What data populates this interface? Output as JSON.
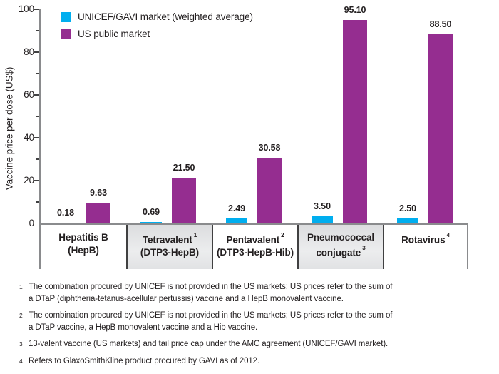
{
  "chart_data": {
    "type": "bar",
    "title": "",
    "xlabel": "",
    "ylabel": "Vaccine price per dose (US$)",
    "ylim": [
      0,
      100
    ],
    "y_major_ticks": [
      0,
      20,
      40,
      60,
      80,
      100
    ],
    "y_minor_tick_step": 10,
    "grid": false,
    "legend_position": "top-left-inside",
    "categories": [
      {
        "line1": "Hepatitis B",
        "line1_sup": "",
        "line2": "(HepB)",
        "line2_sup": ""
      },
      {
        "line1": "Tetravalent",
        "line1_sup": "1",
        "line2": "(DTP3-HepB)",
        "line2_sup": ""
      },
      {
        "line1": "Pentavalent",
        "line1_sup": "2",
        "line2": "(DTP3-HepB-Hib)",
        "line2_sup": ""
      },
      {
        "line1": "Pneumococcal",
        "line1_sup": "",
        "line2": "conjugate",
        "line2_sup": "3"
      },
      {
        "line1": "Rotavirus",
        "line1_sup": "4",
        "line2": "",
        "line2_sup": ""
      }
    ],
    "series": [
      {
        "name": "UNICEF/GAVI market (weighted average)",
        "color": "#00AEEF",
        "values": [
          0.18,
          0.69,
          2.49,
          3.5,
          2.5
        ],
        "labels": [
          "0.18",
          "0.69",
          "2.49",
          "3.50",
          "2.50"
        ]
      },
      {
        "name": "US public market",
        "color": "#952D90",
        "values": [
          9.63,
          21.5,
          30.58,
          95.1,
          88.5
        ],
        "labels": [
          "9.63",
          "21.50",
          "30.58",
          "95.10",
          "88.50"
        ]
      }
    ]
  },
  "footnotes": [
    {
      "marker": "1",
      "lines": [
        "The combination procured by UNICEF is not provided in the US markets; US prices refer to the sum of",
        "a DTaP (diphtheria-tetanus-acellular pertussis) vaccine and a HepB monovalent vaccine."
      ]
    },
    {
      "marker": "2",
      "lines": [
        "The combination procured by UNICEF is not provided in the US markets; US prices refer to the sum of",
        "a DTaP vaccine, a HepB monovalent vaccine and a Hib vaccine."
      ]
    },
    {
      "marker": "3",
      "lines": [
        "13-valent vaccine (US markets) and tail price cap under the AMC agreement (UNICEF/GAVI market)."
      ]
    },
    {
      "marker": "4",
      "lines": [
        "Refers to GlaxoSmithKline product procured by GAVI as of 2012."
      ]
    }
  ],
  "colors": {
    "axis": "#8a8b8d",
    "tick": "#404041",
    "text": "#231f20",
    "series_unicef": "#00AEEF",
    "series_us_public": "#952D90"
  }
}
